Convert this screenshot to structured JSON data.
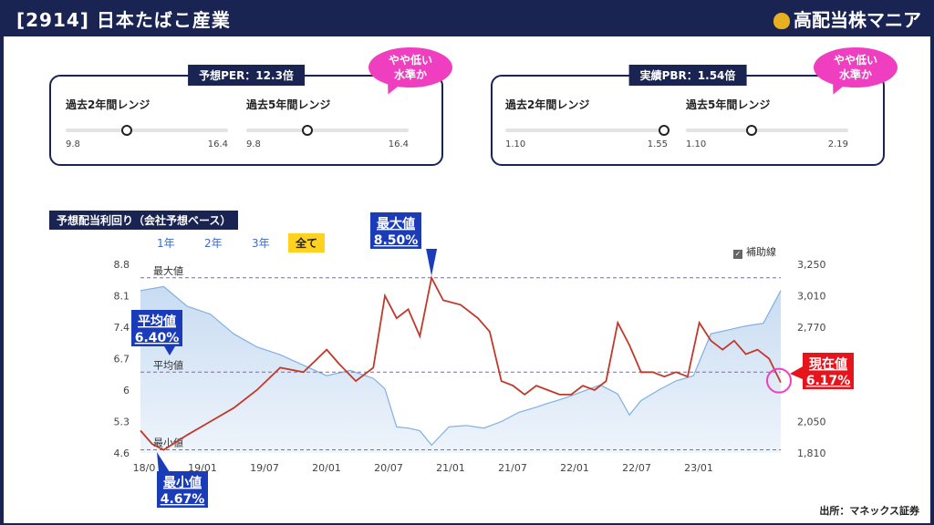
{
  "header": {
    "title": "[2914] 日本たばこ産業",
    "brand": "高配当株マニア"
  },
  "per_card": {
    "tag": "予想PER：12.3倍",
    "bubble": [
      "やや低い",
      "水準か"
    ],
    "ranges": [
      {
        "label": "過去2年間レンジ",
        "lo": "9.8",
        "hi": "16.4",
        "position": 0.37
      },
      {
        "label": "過去5年間レンジ",
        "lo": "9.8",
        "hi": "16.4",
        "position": 0.37
      }
    ]
  },
  "pbr_card": {
    "tag": "実績PBR：1.54倍",
    "bubble": [
      "やや低い",
      "水準か"
    ],
    "ranges": [
      {
        "label": "過去2年間レンジ",
        "lo": "1.10",
        "hi": "1.55",
        "position": 0.97
      },
      {
        "label": "過去5年間レンジ",
        "lo": "1.10",
        "hi": "2.19",
        "position": 0.4
      }
    ]
  },
  "chart_title": "予想配当利回り（会社予想ベース）",
  "tabs": [
    "1年",
    "2年",
    "3年",
    "全て"
  ],
  "active_tab": "全て",
  "helper_label": "補助線",
  "source": "出所：マネックス証券",
  "colors": {
    "navy": "#1a2452",
    "yield_line": "#c0392b",
    "price_line": "#7fb0e0",
    "max_min_callout": "#1a3cb8",
    "current_callout": "#e8141c",
    "bubble": "#ef3fc0",
    "tab_active": "#ffd21f"
  },
  "chart_data": {
    "type": "line",
    "x_tick_labels": [
      "18/0",
      "19/01",
      "19/07",
      "20/01",
      "20/07",
      "21/01",
      "21/07",
      "22/01",
      "22/07",
      "23/01"
    ],
    "ylim_left": [
      4.6,
      8.8
    ],
    "yticks_left": [
      "8.8",
      "8.1",
      "7.4",
      "6.7",
      "6",
      "5.3",
      "4.6"
    ],
    "ylim_right": [
      1810,
      3250
    ],
    "yticks_right": [
      "3,250",
      "3,010",
      "2,770",
      "",
      "",
      "2,050",
      "1,810"
    ],
    "reference_lines": [
      {
        "label": "最大値",
        "value": 8.5
      },
      {
        "label": "平均値",
        "value": 6.4
      },
      {
        "label": "最小値",
        "value": 4.67
      }
    ],
    "callouts": [
      {
        "label": "最大値",
        "value": "8.50%"
      },
      {
        "label": "平均値",
        "value": "6.40%"
      },
      {
        "label": "最小値",
        "value": "4.67%"
      },
      {
        "label": "現在値",
        "value": "6.17%"
      }
    ],
    "series": [
      {
        "axis": "left",
        "values": [
          [
            0,
            5.1
          ],
          [
            0.2,
            4.8
          ],
          [
            0.4,
            4.67
          ],
          [
            0.8,
            5.0
          ],
          [
            1.2,
            5.3
          ],
          [
            1.6,
            5.6
          ],
          [
            2.0,
            6.0
          ],
          [
            2.4,
            6.5
          ],
          [
            2.8,
            6.4
          ],
          [
            3.2,
            6.9
          ],
          [
            3.4,
            6.6
          ],
          [
            3.7,
            6.2
          ],
          [
            4.0,
            6.5
          ],
          [
            4.2,
            8.1
          ],
          [
            4.4,
            7.6
          ],
          [
            4.6,
            7.8
          ],
          [
            4.8,
            7.2
          ],
          [
            5.0,
            8.5
          ],
          [
            5.2,
            8.0
          ],
          [
            5.5,
            7.9
          ],
          [
            5.8,
            7.6
          ],
          [
            6.0,
            7.3
          ],
          [
            6.2,
            6.2
          ],
          [
            6.4,
            6.1
          ],
          [
            6.6,
            5.9
          ],
          [
            6.8,
            6.1
          ],
          [
            7.0,
            6.0
          ],
          [
            7.2,
            5.9
          ],
          [
            7.4,
            5.9
          ],
          [
            7.6,
            6.1
          ],
          [
            7.8,
            6.0
          ],
          [
            8.0,
            6.2
          ],
          [
            8.2,
            7.5
          ],
          [
            8.4,
            7.0
          ],
          [
            8.6,
            6.4
          ],
          [
            8.8,
            6.4
          ],
          [
            9.0,
            6.3
          ],
          [
            9.2,
            6.4
          ],
          [
            9.4,
            6.3
          ],
          [
            9.6,
            7.5
          ],
          [
            9.8,
            7.1
          ],
          [
            10.0,
            6.9
          ],
          [
            10.2,
            7.1
          ],
          [
            10.4,
            6.8
          ],
          [
            10.6,
            6.9
          ],
          [
            10.8,
            6.7
          ],
          [
            11.0,
            6.17
          ]
        ]
      },
      {
        "axis": "right",
        "values": [
          [
            0,
            3050
          ],
          [
            0.4,
            3080
          ],
          [
            0.8,
            2930
          ],
          [
            1.2,
            2870
          ],
          [
            1.6,
            2720
          ],
          [
            2.0,
            2620
          ],
          [
            2.4,
            2560
          ],
          [
            2.8,
            2480
          ],
          [
            3.2,
            2400
          ],
          [
            3.6,
            2440
          ],
          [
            4.0,
            2380
          ],
          [
            4.2,
            2300
          ],
          [
            4.4,
            2010
          ],
          [
            4.6,
            2000
          ],
          [
            4.8,
            1980
          ],
          [
            5.0,
            1870
          ],
          [
            5.3,
            2010
          ],
          [
            5.6,
            2020
          ],
          [
            5.9,
            2000
          ],
          [
            6.2,
            2050
          ],
          [
            6.5,
            2120
          ],
          [
            6.8,
            2160
          ],
          [
            7.0,
            2190
          ],
          [
            7.3,
            2230
          ],
          [
            7.6,
            2280
          ],
          [
            7.9,
            2330
          ],
          [
            8.2,
            2260
          ],
          [
            8.4,
            2100
          ],
          [
            8.6,
            2210
          ],
          [
            8.9,
            2290
          ],
          [
            9.2,
            2360
          ],
          [
            9.5,
            2400
          ],
          [
            9.8,
            2720
          ],
          [
            10.1,
            2750
          ],
          [
            10.4,
            2780
          ],
          [
            10.7,
            2800
          ],
          [
            11.0,
            3050
          ]
        ]
      }
    ]
  }
}
